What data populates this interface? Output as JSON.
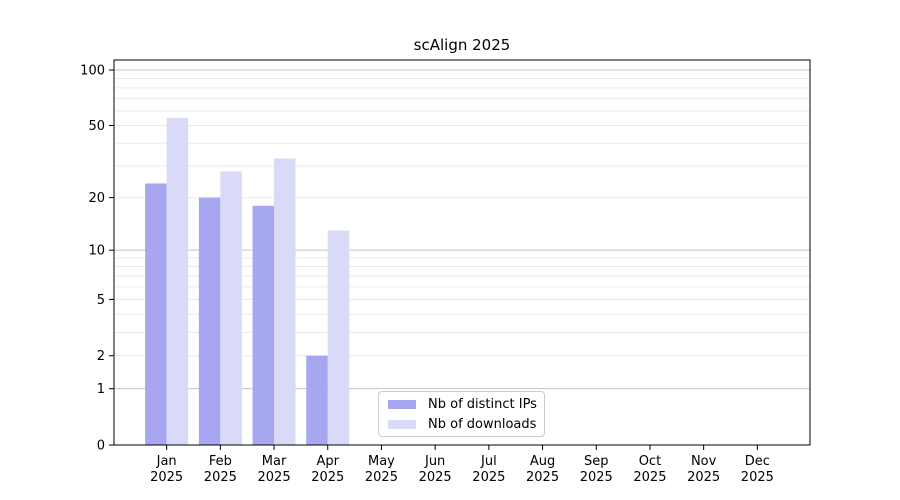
{
  "title": "scAlign 2025",
  "chart_data": {
    "type": "bar",
    "title": "scAlign 2025",
    "categories": [
      "Jan",
      "Feb",
      "Mar",
      "Apr",
      "May",
      "Jun",
      "Jul",
      "Aug",
      "Sep",
      "Oct",
      "Nov",
      "Dec"
    ],
    "year_label": "2025",
    "series": [
      {
        "name": "Nb of distinct IPs",
        "color": "#a6a6f1",
        "values": [
          24,
          20,
          18,
          2,
          0,
          0,
          0,
          0,
          0,
          0,
          0,
          0
        ]
      },
      {
        "name": "Nb of downloads",
        "color": "#d9d9f8",
        "values": [
          55,
          28,
          33,
          13,
          0,
          0,
          0,
          0,
          0,
          0,
          0,
          0
        ]
      }
    ],
    "y_scale": "log10(1+x)",
    "y_axis_ticks": [
      0,
      1,
      2,
      5,
      10,
      20,
      50,
      100
    ],
    "y_major_gridlines": [
      1,
      10,
      100
    ],
    "y_minor_gridlines": [
      2,
      3,
      4,
      5,
      6,
      7,
      8,
      9,
      20,
      30,
      40,
      50,
      60,
      70,
      80,
      90
    ],
    "ylim": [
      0,
      113
    ],
    "grid": true,
    "legend_position": "lower-center",
    "colors": {
      "axis": "#000000",
      "grid_minor": "#eaeaea",
      "grid_major": "#c4c4c4",
      "background": "#ffffff",
      "legend_border": "#cccccc"
    }
  }
}
